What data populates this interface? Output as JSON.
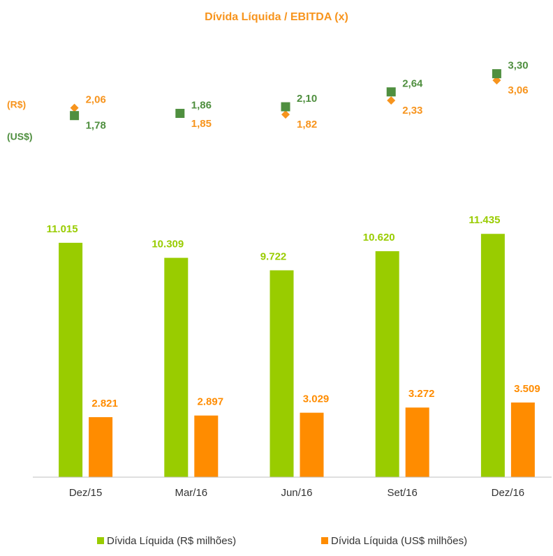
{
  "chart_data": [
    {
      "type": "point",
      "title": "Dívida Líquida / EBITDA (x)",
      "ylim": [
        0,
        4
      ],
      "series": [
        {
          "name": "(R$)",
          "color": "#f7941d",
          "marker": "diamond",
          "values": [
            2.06,
            1.85,
            1.82,
            2.33,
            3.06
          ],
          "value_labels": [
            "2,06",
            "1,85",
            "1,82",
            "2,33",
            "3,06"
          ]
        },
        {
          "name": "(US$)",
          "color": "#4f8f3f",
          "marker": "square",
          "values": [
            1.78,
            1.86,
            2.1,
            2.64,
            3.3
          ],
          "value_labels": [
            "1,78",
            "1,86",
            "2,10",
            "2,64",
            "3,30"
          ]
        }
      ]
    },
    {
      "type": "bar",
      "categories": [
        "Dez/15",
        "Mar/16",
        "Jun/16",
        "Set/16",
        "Dez/16"
      ],
      "ylim": [
        0,
        12000
      ],
      "legend": "bottom",
      "series": [
        {
          "name": "Dívida Líquida (R$ milhões)",
          "color": "#99cc00",
          "values": [
            11015,
            10309,
            9722,
            10620,
            11435
          ],
          "value_labels": [
            "11.015",
            "10.309",
            "9.722",
            "10.620",
            "11.435"
          ]
        },
        {
          "name": "Dívida Líquida (US$ milhões)",
          "color": "#ff8c00",
          "values": [
            2821,
            2897,
            3029,
            3272,
            3509
          ],
          "value_labels": [
            "2.821",
            "2.897",
            "3.029",
            "3.272",
            "3.509"
          ]
        }
      ]
    }
  ]
}
